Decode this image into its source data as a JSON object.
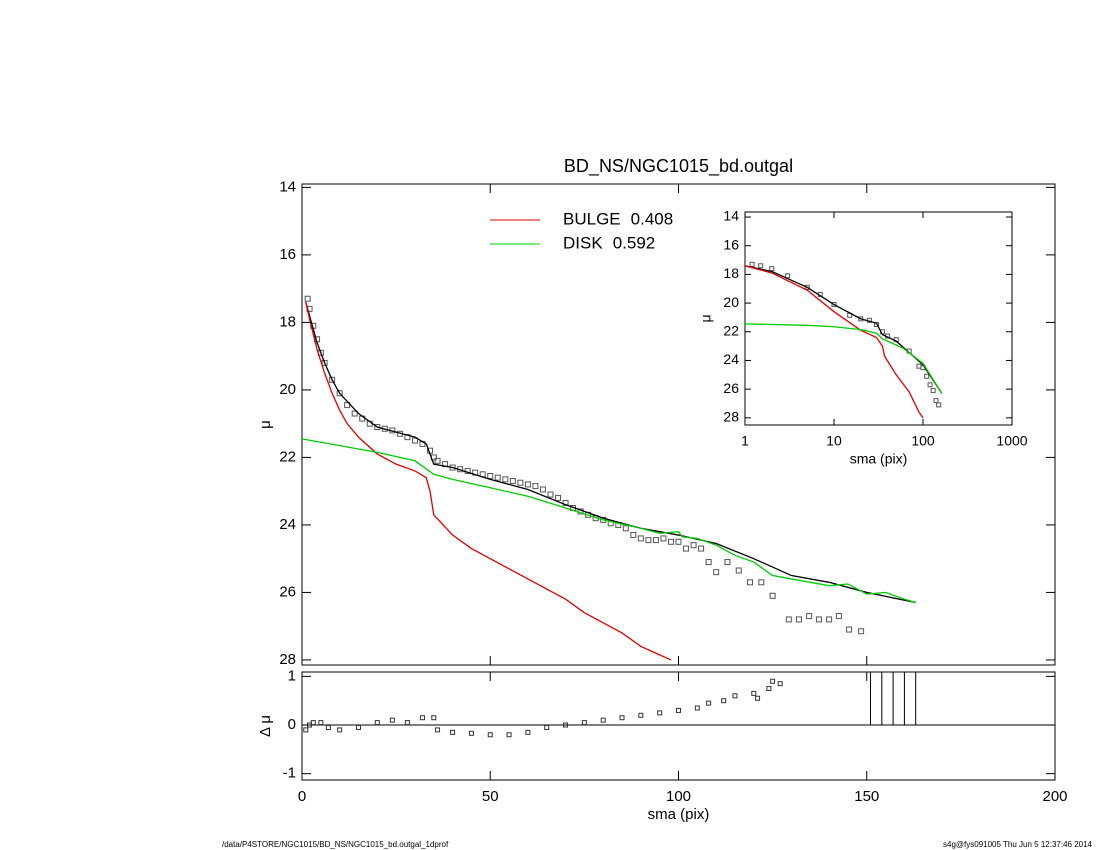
{
  "chart_data": [
    {
      "type": "profile",
      "title": "BD_NS/NGC1015_bd.outgal",
      "ylabel": "μ",
      "xlim": [
        0,
        200
      ],
      "xticks": [
        0,
        50,
        100,
        150,
        200
      ],
      "xticklabels": false,
      "ylim": [
        28.15,
        13.9
      ],
      "yticks": [
        14,
        16,
        18,
        20,
        22,
        24,
        26,
        28
      ],
      "legend": true,
      "series": [
        {
          "style": "markers",
          "color": "#555555",
          "x": [
            1.5,
            2,
            3,
            4,
            5,
            6,
            8,
            10,
            12,
            14,
            16,
            18,
            20,
            22,
            24,
            26,
            28,
            30,
            32,
            34,
            35,
            36,
            38,
            40,
            42,
            44,
            46,
            48,
            50,
            52,
            54,
            56,
            58,
            60,
            62,
            64,
            66,
            68,
            70,
            72,
            74,
            76,
            78,
            80,
            82,
            84,
            86,
            88,
            90,
            92,
            94,
            96,
            98,
            100,
            102,
            104,
            106,
            108,
            110,
            113,
            116,
            119,
            122,
            125,
            129.3,
            132,
            134.7,
            137.3,
            140,
            142.6,
            145.3,
            148.5
          ],
          "values": [
            17.3,
            17.6,
            18.1,
            18.5,
            18.9,
            19.2,
            19.7,
            20.1,
            20.45,
            20.7,
            20.85,
            21.0,
            21.1,
            21.15,
            21.2,
            21.3,
            21.4,
            21.5,
            21.6,
            21.8,
            22.0,
            22.1,
            22.2,
            22.3,
            22.35,
            22.4,
            22.45,
            22.5,
            22.55,
            22.6,
            22.65,
            22.7,
            22.75,
            22.8,
            22.85,
            22.95,
            23.1,
            23.2,
            23.35,
            23.5,
            23.6,
            23.7,
            23.8,
            23.85,
            23.95,
            24.0,
            24.1,
            24.3,
            24.4,
            24.45,
            24.45,
            24.4,
            24.5,
            24.5,
            24.7,
            24.6,
            24.7,
            25.1,
            25.4,
            25.1,
            25.35,
            25.7,
            25.7,
            26.1,
            26.8,
            26.8,
            26.7,
            26.8,
            26.8,
            26.7,
            27.1,
            27.15
          ]
        },
        {
          "style": "line",
          "color": "#000000",
          "x": [
            1,
            2,
            4,
            6,
            8,
            10,
            15,
            20,
            25,
            30,
            33,
            35,
            40,
            50,
            60,
            70,
            80,
            90,
            100,
            110,
            120,
            130,
            140,
            150,
            163
          ],
          "values": [
            17.4,
            17.8,
            18.6,
            19.2,
            19.7,
            20.1,
            20.7,
            21.1,
            21.25,
            21.4,
            21.6,
            22.2,
            22.3,
            22.65,
            22.95,
            23.4,
            23.8,
            24.1,
            24.3,
            24.55,
            25.0,
            25.5,
            25.7,
            26.0,
            26.3
          ]
        },
        {
          "style": "line",
          "name": "BULGE",
          "fraction": 0.408,
          "color": "#e00000",
          "x": [
            1,
            2,
            4,
            6,
            8,
            10,
            12,
            15,
            20,
            25,
            30,
            33,
            34,
            35,
            40,
            45,
            50,
            55,
            60,
            65,
            70,
            75,
            80,
            85,
            90,
            95,
            98
          ],
          "values": [
            17.4,
            17.9,
            18.8,
            19.5,
            20.1,
            20.6,
            21.0,
            21.4,
            21.9,
            22.2,
            22.4,
            22.6,
            23.0,
            23.7,
            24.3,
            24.7,
            25.0,
            25.3,
            25.6,
            25.9,
            26.2,
            26.6,
            26.9,
            27.2,
            27.6,
            27.85,
            28.0
          ]
        },
        {
          "style": "line",
          "name": "DISK",
          "fraction": 0.592,
          "color": "#00cc00",
          "x": [
            0,
            10,
            20,
            30,
            35,
            40,
            50,
            60,
            70,
            80,
            90,
            95,
            100,
            101,
            105,
            110,
            115,
            120,
            125,
            130,
            140,
            145,
            150,
            155,
            160,
            163
          ],
          "values": [
            21.45,
            21.65,
            21.85,
            22.1,
            22.5,
            22.65,
            22.9,
            23.15,
            23.5,
            23.85,
            24.1,
            24.25,
            24.2,
            24.35,
            24.4,
            24.6,
            24.9,
            25.1,
            25.5,
            25.6,
            25.8,
            25.75,
            26.05,
            26.0,
            26.2,
            26.3
          ]
        }
      ]
    },
    {
      "type": "profile",
      "ylabel": "Δ μ",
      "xlabel": "sma (pix)",
      "xlim": [
        0,
        200
      ],
      "xticks": [
        0,
        50,
        100,
        150,
        200
      ],
      "ylim": [
        -1.13,
        1.09
      ],
      "yticks": [
        -1,
        0,
        1
      ],
      "hline": 0,
      "vlines": [
        151,
        154,
        157,
        160,
        163
      ],
      "series": [
        {
          "style": "markers",
          "color": "#333333",
          "x": [
            1,
            2,
            3,
            5,
            7,
            10,
            15,
            20,
            24,
            28,
            32,
            35,
            36,
            40,
            45,
            50,
            55,
            60,
            65,
            70,
            75,
            80,
            85,
            90,
            95,
            100,
            105,
            108,
            112,
            115,
            120,
            121,
            124,
            125,
            127
          ],
          "values": [
            -0.1,
            0.0,
            0.05,
            0.05,
            -0.05,
            -0.1,
            -0.05,
            0.05,
            0.1,
            0.05,
            0.15,
            0.15,
            -0.1,
            -0.15,
            -0.17,
            -0.2,
            -0.2,
            -0.15,
            -0.05,
            0.0,
            0.05,
            0.1,
            0.15,
            0.2,
            0.25,
            0.3,
            0.35,
            0.45,
            0.5,
            0.6,
            0.65,
            0.55,
            0.75,
            0.9,
            0.85
          ]
        }
      ]
    },
    {
      "type": "profile",
      "ylabel": "μ",
      "xlabel": "sma (pix)",
      "xscale": "log",
      "xlim": [
        1,
        1000
      ],
      "xticks": [
        1,
        10,
        100,
        1000
      ],
      "ylim": [
        28.5,
        13.65
      ],
      "yticks": [
        14,
        16,
        18,
        20,
        22,
        24,
        26,
        28
      ],
      "series": [
        {
          "style": "markers",
          "color": "#555555",
          "x": [
            1.2,
            1.5,
            2,
            3,
            5,
            7,
            10,
            15,
            20,
            25,
            30,
            35,
            40,
            50,
            70,
            90,
            100,
            110,
            120,
            130,
            140,
            150
          ],
          "values": [
            17.3,
            17.4,
            17.6,
            18.1,
            18.9,
            19.4,
            20.1,
            20.85,
            21.1,
            21.2,
            21.5,
            22.0,
            22.3,
            22.55,
            23.35,
            24.4,
            24.5,
            25.1,
            25.7,
            26.1,
            26.8,
            27.1
          ]
        },
        {
          "style": "line",
          "color": "#000000",
          "x": [
            1,
            2,
            5,
            10,
            20,
            30,
            35,
            50,
            100,
            163
          ],
          "values": [
            17.4,
            17.8,
            18.9,
            20.1,
            21.1,
            21.4,
            22.2,
            22.65,
            24.3,
            26.3
          ]
        },
        {
          "style": "line",
          "color": "#e00000",
          "x": [
            1,
            2,
            5,
            10,
            20,
            30,
            35,
            37,
            50,
            70,
            90,
            100
          ],
          "values": [
            17.4,
            17.9,
            19.1,
            20.6,
            21.9,
            22.4,
            23.0,
            23.7,
            25.0,
            26.2,
            27.6,
            28.0
          ]
        },
        {
          "style": "line",
          "color": "#00cc00",
          "x": [
            1,
            5,
            10,
            20,
            30,
            35,
            40,
            60,
            100,
            163
          ],
          "values": [
            21.45,
            21.55,
            21.65,
            21.85,
            22.1,
            22.5,
            22.65,
            23.15,
            24.2,
            26.3
          ]
        }
      ]
    }
  ],
  "footer": {
    "left": "/data/P4STORE/NGC1015/BD_NS/NGC1015_bd.outgal_1dprof",
    "right": "s4g@fys091005  Thu Jun  5 12:37:46 2014"
  }
}
